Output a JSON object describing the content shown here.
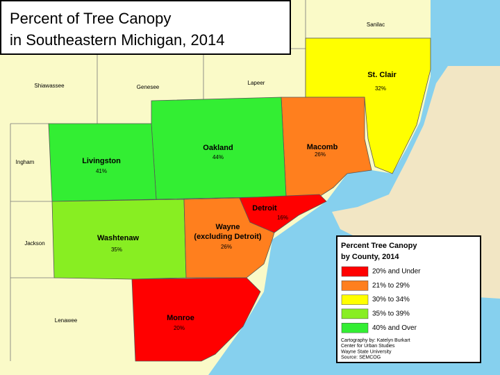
{
  "title": {
    "lines": [
      "Percent of Tree Canopy",
      "in Southeastern Michigan, 2014"
    ]
  },
  "counties": [
    {
      "name": "Livingston",
      "value": "41%"
    },
    {
      "name": "Oakland",
      "value": "44%"
    },
    {
      "name": "Macomb",
      "value": "26%"
    },
    {
      "name": "St. Clair",
      "value": "32%"
    },
    {
      "name": "Washtenaw",
      "value": "35%"
    },
    {
      "name": "Wayne",
      "note": "(excluding Detroit)",
      "value": "26%"
    },
    {
      "name": "Detroit",
      "value": "16%"
    },
    {
      "name": "Monroe",
      "value": "20%"
    }
  ],
  "other_counties": [
    "Sanilac",
    "Shiawassee",
    "Genesee",
    "Lapeer",
    "Ingham",
    "Jackson",
    "Lenawee"
  ],
  "legend": {
    "title": [
      "Percent Tree Canopy",
      "by County, 2014"
    ],
    "items": [
      {
        "label": "20% and Under",
        "color": "#ff0000"
      },
      {
        "label": "21% to 29%",
        "color": "#ff7f1e"
      },
      {
        "label": "30% to 34%",
        "color": "#ffff00"
      },
      {
        "label": "35% to 39%",
        "color": "#88ee22"
      },
      {
        "label": "40% and Over",
        "color": "#33ee33"
      }
    ]
  },
  "credits": [
    "Cartography by: Katelyn Burkart",
    "Center for Urban Studies",
    "Wayne State University",
    "Source: SEMCOG"
  ]
}
